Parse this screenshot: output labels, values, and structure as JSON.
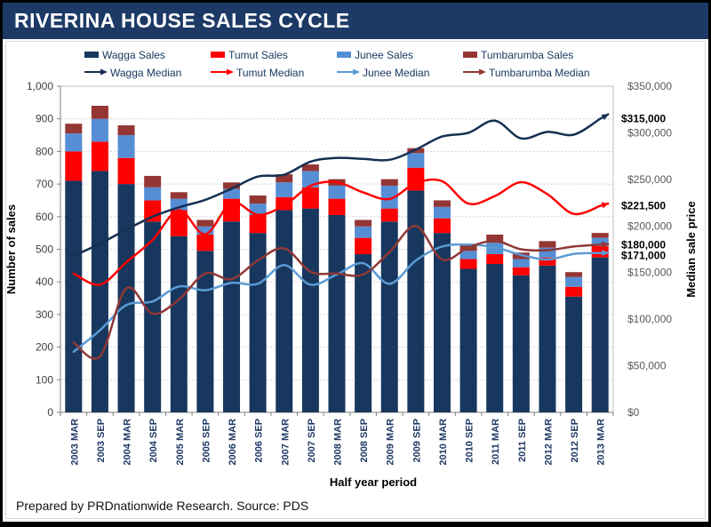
{
  "title": "RIVERINA HOUSE SALES CYCLE",
  "footer": "Prepared by PRDnationwide Research. Source: PDS",
  "chart_data": {
    "type": "combo-stacked-bar-line",
    "title": "RIVERINA HOUSE SALES CYCLE",
    "xlabel": "Half year period",
    "left_axis": {
      "title": "Number of sales",
      "min": 0,
      "max": 1000,
      "step": 100,
      "tick_labels": [
        "0",
        "100",
        "200",
        "300",
        "400",
        "500",
        "600",
        "700",
        "800",
        "900",
        "1,000"
      ]
    },
    "right_axis": {
      "title": "Median sale price",
      "min": 0,
      "max": 350000,
      "step": 50000,
      "tick_labels": [
        "$0",
        "$50,000",
        "$100,000",
        "$150,000",
        "$200,000",
        "$250,000",
        "$300,000",
        "$350,000"
      ]
    },
    "grid": "horizontal-dotted",
    "legend_position": "top-two-rows",
    "categories": [
      "2003 MAR",
      "2003 SEP",
      "2004 MAR",
      "2004 SEP",
      "2005 MAR",
      "2005 SEP",
      "2006 MAR",
      "2006 SEP",
      "2007 MAR",
      "2007 SEP",
      "2008 MAR",
      "2008 SEP",
      "2009 MAR",
      "2009 SEP",
      "2010 MAR",
      "2010 SEP",
      "2011 MAR",
      "2011 SEP",
      "2012 MAR",
      "2012 SEP",
      "2013 MAR"
    ],
    "bar_series": [
      {
        "name": "Wagga Sales",
        "color": "#17375E",
        "values": [
          710,
          740,
          700,
          585,
          540,
          495,
          585,
          550,
          620,
          625,
          605,
          485,
          585,
          680,
          550,
          440,
          455,
          420,
          450,
          355,
          475
        ]
      },
      {
        "name": "Tumut Sales",
        "color": "#FE0000",
        "values": [
          90,
          90,
          80,
          65,
          80,
          50,
          70,
          55,
          40,
          65,
          50,
          50,
          40,
          70,
          45,
          30,
          30,
          25,
          25,
          30,
          35
        ]
      },
      {
        "name": "Junee Sales",
        "color": "#558ED5",
        "values": [
          55,
          70,
          70,
          40,
          35,
          25,
          30,
          35,
          45,
          50,
          40,
          35,
          70,
          45,
          35,
          25,
          35,
          25,
          30,
          30,
          25
        ]
      },
      {
        "name": "Tumbarumba Sales",
        "color": "#943634",
        "values": [
          30,
          40,
          30,
          35,
          20,
          20,
          20,
          25,
          25,
          20,
          20,
          20,
          20,
          15,
          20,
          20,
          25,
          20,
          20,
          15,
          15
        ]
      }
    ],
    "line_series": [
      {
        "name": "Wagga Median",
        "color": "#152F52",
        "callout": "$315,000",
        "values": [
          168000,
          181000,
          196000,
          210000,
          220000,
          228000,
          240000,
          253000,
          255000,
          269000,
          273000,
          272000,
          271000,
          282000,
          296000,
          300000,
          313000,
          294000,
          301000,
          298000,
          315000
        ]
      },
      {
        "name": "Tumut Median",
        "color": "#FE0000",
        "callout": "$221,500",
        "values": [
          149000,
          137000,
          161000,
          185000,
          217000,
          191000,
          225000,
          212000,
          222000,
          243000,
          247000,
          236000,
          229000,
          246000,
          248000,
          224000,
          232000,
          247000,
          234000,
          213000,
          221500
        ]
      },
      {
        "name": "Junee Median",
        "color": "#5B9BD5",
        "callout": "$171,000",
        "values": [
          65000,
          88000,
          115000,
          119000,
          135000,
          131000,
          139000,
          138000,
          158000,
          137000,
          148000,
          160000,
          138000,
          163000,
          178000,
          180000,
          177000,
          169000,
          164000,
          170000,
          171000
        ]
      },
      {
        "name": "Tumbarumba Median",
        "color": "#8F3836",
        "callout": "$180,000",
        "values": [
          75000,
          60000,
          133000,
          106000,
          121000,
          149000,
          143000,
          163000,
          176000,
          151000,
          149000,
          148000,
          172000,
          200000,
          164000,
          177000,
          184000,
          175000,
          174000,
          178000,
          180000
        ]
      }
    ],
    "callouts": [
      {
        "text": "$315,000",
        "value": 315000
      },
      {
        "text": "$221,500",
        "value": 221500
      },
      {
        "text": "$180,000",
        "value": 180000
      },
      {
        "text": "$171,000",
        "value": 171000
      }
    ]
  }
}
